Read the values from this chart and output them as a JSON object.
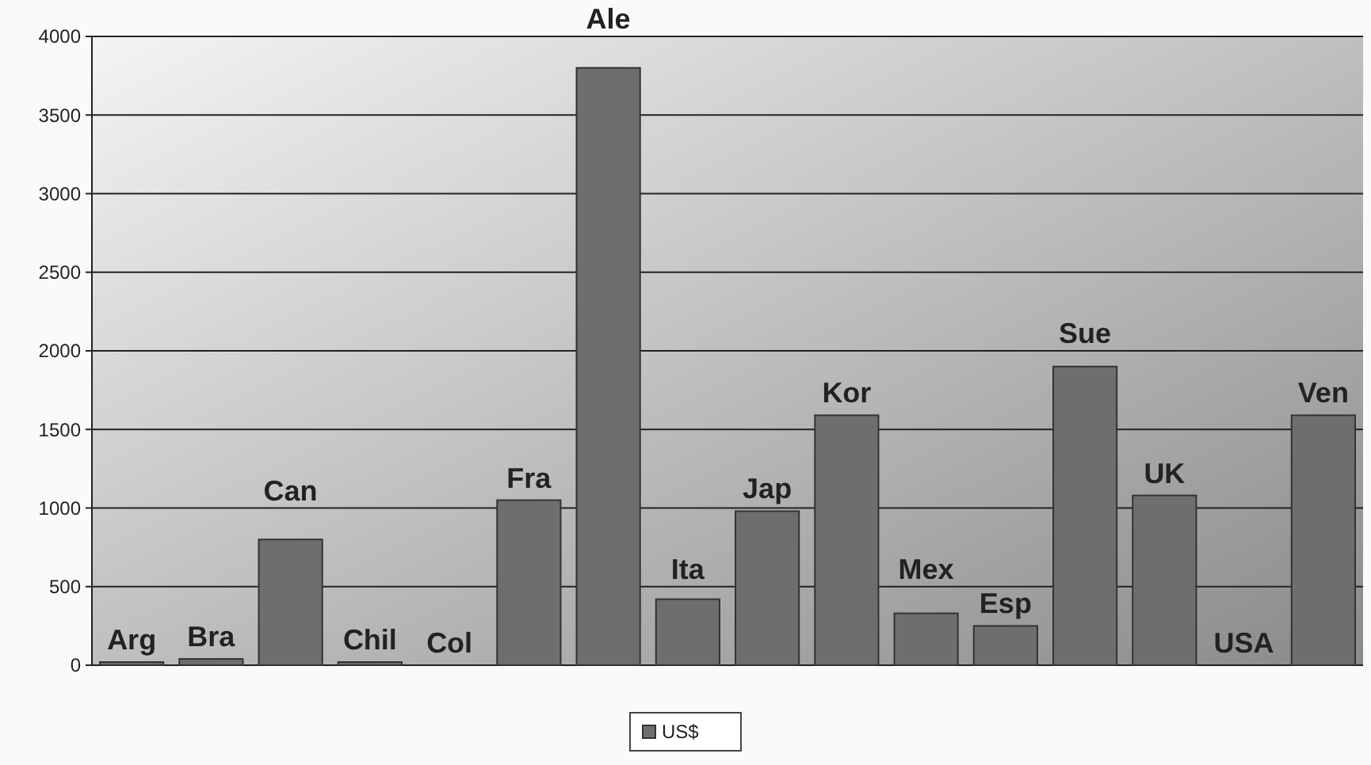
{
  "chart_data": {
    "type": "bar",
    "categories": [
      "Arg",
      "Bra",
      "Can",
      "Chil",
      "Col",
      "Fra",
      "Ale",
      "Ita",
      "Jap",
      "Kor",
      "Mex",
      "Esp",
      "Sue",
      "UK",
      "USA",
      "Ven"
    ],
    "series": [
      {
        "name": "US$",
        "color": "#6e6e6e",
        "values": [
          20,
          40,
          800,
          20,
          0,
          1050,
          3800,
          420,
          980,
          1590,
          330,
          250,
          1900,
          1080,
          0,
          1590
        ]
      }
    ],
    "ylim": [
      0,
      4000
    ],
    "yticks": [
      0,
      500,
      1000,
      1500,
      2000,
      2500,
      3000,
      3500,
      4000
    ],
    "grid": "y",
    "legend": "bottom"
  }
}
